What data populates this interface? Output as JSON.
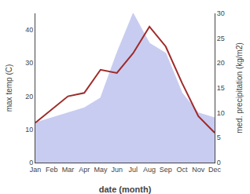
{
  "chart_data": {
    "type": "line",
    "categories": [
      "Jan",
      "Feb",
      "Mar",
      "Apr",
      "May",
      "Jun",
      "Jul",
      "Aug",
      "Sep",
      "Oct",
      "Nov",
      "Dec"
    ],
    "series": [
      {
        "type": "area",
        "color": "#c8ccf0",
        "axis": "y2",
        "values": [
          8,
          9,
          10,
          11,
          13,
          22,
          30,
          24,
          22,
          14,
          10,
          9
        ]
      },
      {
        "type": "line",
        "color": "#9e2a2a",
        "values": [
          12,
          16,
          20,
          21,
          28,
          27,
          33,
          41,
          35,
          24,
          14,
          9
        ]
      }
    ],
    "xlabel": "date (month)",
    "ylabel": "max temp (C)",
    "y2label": "med. precipitation (kg/m2)",
    "ylim": [
      0,
      45
    ],
    "yticks": [
      0,
      10,
      20,
      30,
      40
    ],
    "y2lim": [
      0,
      30
    ],
    "y2ticks": [
      0,
      5,
      10,
      15,
      20,
      25,
      30
    ],
    "grid": false
  }
}
